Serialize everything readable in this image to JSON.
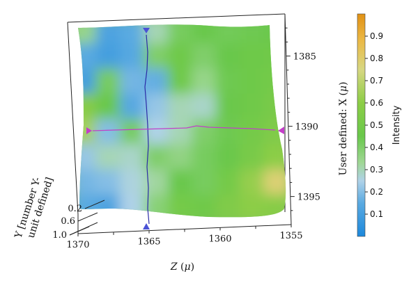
{
  "chart_data": {
    "type": "heatmap",
    "surface": "3d-surface",
    "colormap_title": "Intensity",
    "colorbar_ticks": [
      "0.1",
      "0.2",
      "0.3",
      "0.4",
      "0.5",
      "0.6",
      "0.7",
      "0.8",
      "0.9"
    ],
    "colorbar_range": [
      0.0,
      1.0
    ],
    "z_axis": {
      "label": "Z (μ)",
      "label_text": "Z",
      "label_unit": "μ",
      "ticks": [
        "1370",
        "1365",
        "1360",
        "1355"
      ],
      "range": [
        1370,
        1355
      ]
    },
    "x_axis": {
      "label": "User defined: X (μ)",
      "label_prefix": "User defined: X (",
      "label_unit": "μ",
      "label_suffix": ")",
      "ticks": [
        "1385",
        "1390",
        "1395"
      ],
      "range": [
        1382,
        1397
      ]
    },
    "y_axis": {
      "label_line1": "Y [number Y-",
      "label_line2": "unit defined]",
      "ticks": [
        "0.2",
        "0.6",
        "1.0"
      ]
    },
    "crosshair": {
      "vertical_z": 1365.5,
      "horizontal_x": 1389.3
    },
    "intensity_grid_rows_top_to_bottom": [
      [
        0.35,
        0.12,
        0.15,
        0.3,
        0.42,
        0.45,
        0.43,
        0.44,
        0.46
      ],
      [
        0.15,
        0.1,
        0.14,
        0.4,
        0.47,
        0.4,
        0.45,
        0.47,
        0.48
      ],
      [
        0.1,
        0.42,
        0.18,
        0.16,
        0.48,
        0.35,
        0.44,
        0.47,
        0.5
      ],
      [
        0.58,
        0.45,
        0.14,
        0.22,
        0.3,
        0.28,
        0.46,
        0.48,
        0.52
      ],
      [
        0.65,
        0.2,
        0.42,
        0.25,
        0.3,
        0.4,
        0.44,
        0.5,
        0.55
      ],
      [
        0.22,
        0.3,
        0.28,
        0.4,
        0.36,
        0.42,
        0.46,
        0.52,
        0.6
      ],
      [
        0.18,
        0.2,
        0.26,
        0.32,
        0.45,
        0.42,
        0.5,
        0.62,
        0.78
      ],
      [
        0.15,
        0.12,
        0.25,
        0.38,
        0.5,
        0.48,
        0.55,
        0.6,
        0.58
      ]
    ],
    "colors": {
      "low": "#1f8ad8",
      "mid": "#6ec65a",
      "high": "#e29a1c",
      "crosshair_vertical": "#2a2aa6",
      "crosshair_horizontal": "#c040c8",
      "marker_vertical": "#4a52d6",
      "marker_horizontal": "#c43ec9"
    }
  }
}
